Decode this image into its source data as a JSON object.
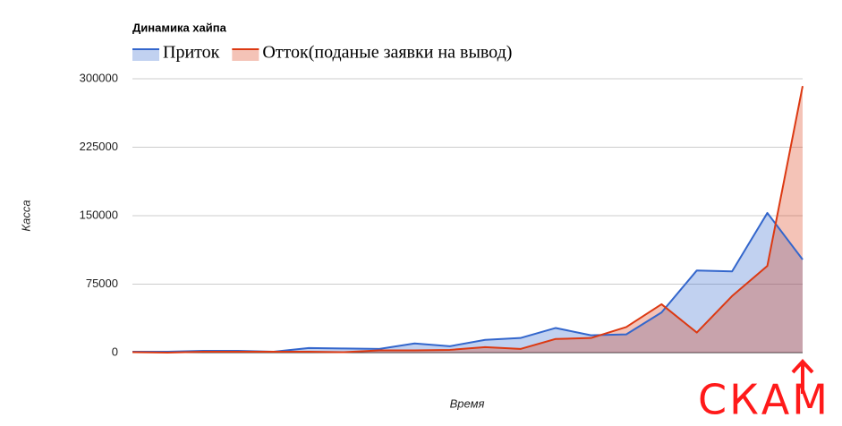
{
  "chart_data": {
    "type": "area",
    "title": "Динамика хайпа",
    "x_label": "Время",
    "y_label": "Касса",
    "annotation": "СКАМ",
    "categories": [
      null,
      null,
      null,
      null,
      null,
      null,
      null,
      null,
      null,
      null,
      null,
      null,
      null,
      null,
      null,
      null,
      null,
      null,
      null,
      null
    ],
    "series": [
      {
        "name": "Приток",
        "color": "#3366cc",
        "values": [
          1000,
          1000,
          2000,
          2000,
          1000,
          5000,
          4500,
          4000,
          10000,
          7000,
          14000,
          16000,
          27000,
          19000,
          20000,
          44000,
          90000,
          89000,
          153000,
          102000
        ]
      },
      {
        "name": "Отток(поданые заявки на вывод)",
        "color": "#dc3912",
        "values": [
          500,
          0,
          1000,
          1000,
          1000,
          1000,
          500,
          2500,
          2500,
          3000,
          6000,
          4000,
          15000,
          16000,
          28000,
          53000,
          22000,
          62000,
          95000,
          292000
        ]
      }
    ],
    "ylim": [
      0,
      300000
    ],
    "yticks": [
      0,
      75000,
      150000,
      225000,
      300000
    ],
    "grid": true
  }
}
